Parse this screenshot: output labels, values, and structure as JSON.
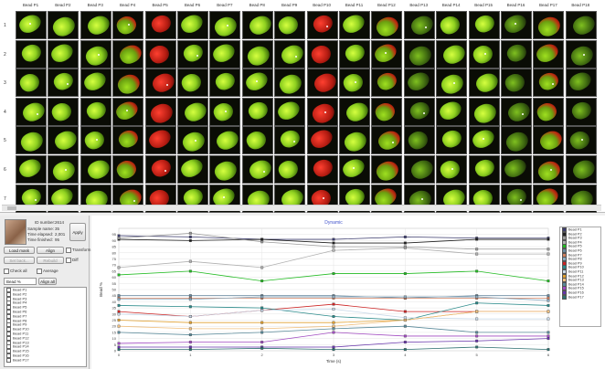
{
  "grid": {
    "columns": [
      "Bead P1",
      "Bead P2",
      "Bead P3",
      "Bead P4",
      "Bead P5",
      "Bead P6",
      "Bead P7",
      "Bead P8",
      "Bead P9",
      "Bead P10",
      "Bead P11",
      "Bead P12",
      "Bead P13",
      "Bead P14",
      "Bead P15",
      "Bead P16",
      "Bead P17",
      "Bead P18"
    ],
    "rows": [
      "1",
      "2",
      "3",
      "4",
      "5",
      "6",
      "7"
    ]
  },
  "info": {
    "labels": [
      "ID number:",
      "Sample name:",
      "Time elapsed:",
      "Time finished:"
    ],
    "values": [
      "2614",
      "35",
      "2,001",
      "95"
    ]
  },
  "buttons": {
    "apply": "Apply",
    "load_mask": "Load mask",
    "align": "Align",
    "set_bg": "Set back...",
    "rebuild": "Rebuild"
  },
  "checkboxes": {
    "transform": "Transform",
    "diff": "Diff",
    "check_all": "Check all",
    "average": "Average",
    "align_all": "Align all"
  },
  "select": {
    "value": "Bead %"
  },
  "bead_list": [
    "Bead P1",
    "Bead P2",
    "Bead P3",
    "Bead P4",
    "Bead P5",
    "Bead P6",
    "Bead P7",
    "Bead P8",
    "Bead P9",
    "Bead P10",
    "Bead P11",
    "Bead P12",
    "Bead P13",
    "Bead P14",
    "Bead P15",
    "Bead P16",
    "Bead P17"
  ],
  "chart_data": {
    "type": "line",
    "title": "Dynamic",
    "xlabel": "Time (s)",
    "ylabel": "Bead %",
    "x": [
      0,
      1,
      2,
      3,
      4,
      5,
      6
    ],
    "x_tick_labels": [
      "0",
      "1",
      "2",
      "3",
      "4",
      "5",
      "6"
    ],
    "ylim": [
      0,
      100
    ],
    "y_ticks": [
      0,
      5,
      10,
      15,
      20,
      25,
      30,
      35,
      40,
      45,
      50,
      55,
      60,
      65,
      70,
      75,
      80,
      85,
      90,
      95
    ],
    "grid": true,
    "legend_placement": "right",
    "series": [
      {
        "name": "Bead P1",
        "color": "#3c3c6e",
        "values": [
          94,
          93,
          91,
          91,
          93,
          92,
          92
        ]
      },
      {
        "name": "Bead P2",
        "color": "#202020",
        "values": [
          91,
          90,
          91,
          88,
          88,
          91,
          91
        ]
      },
      {
        "name": "Bead P3",
        "color": "#999999",
        "values": [
          92,
          96,
          89,
          85,
          85,
          83,
          83
        ]
      },
      {
        "name": "Bead P4",
        "color": "#b0b0b0",
        "values": [
          68,
          73,
          68,
          82,
          84,
          79,
          79
        ]
      },
      {
        "name": "Bead P5",
        "color": "#22bb22",
        "values": [
          62,
          65,
          57,
          63,
          63,
          65,
          57
        ]
      },
      {
        "name": "Bead P6",
        "color": "#6a8aa0",
        "values": [
          45,
          45,
          45,
          45,
          43,
          45,
          45
        ]
      },
      {
        "name": "Bead P7",
        "color": "#d08060",
        "values": [
          43,
          43,
          43,
          43,
          43,
          43,
          43
        ]
      },
      {
        "name": "Bead P8",
        "color": "#8aaac0",
        "values": [
          42,
          42,
          44,
          44,
          44,
          44,
          41
        ]
      },
      {
        "name": "Bead P9",
        "color": "#cc2222",
        "values": [
          32,
          28,
          33,
          38,
          32,
          32,
          32
        ]
      },
      {
        "name": "Bead P10",
        "color": "#2a8a8a",
        "values": [
          37,
          36,
          35,
          28,
          25,
          39,
          37
        ]
      },
      {
        "name": "Bead P11",
        "color": "#c8d8e8",
        "values": [
          30,
          28,
          33,
          34,
          27,
          26,
          26
        ]
      },
      {
        "name": "Bead P12",
        "color": "#e0a030",
        "values": [
          25,
          23,
          23,
          23,
          25,
          32,
          32
        ]
      },
      {
        "name": "Bead P13",
        "color": "#f0c080",
        "values": [
          20,
          18,
          18,
          20,
          25,
          32,
          32
        ]
      },
      {
        "name": "Bead P14",
        "color": "#5a8a9a",
        "values": [
          15,
          13,
          15,
          18,
          20,
          15,
          15
        ]
      },
      {
        "name": "Bead P15",
        "color": "#a04ac0",
        "values": [
          6,
          7,
          7,
          15,
          12,
          12,
          12
        ]
      },
      {
        "name": "Bead P16",
        "color": "#6633aa",
        "values": [
          3,
          3,
          3,
          3,
          7,
          8,
          10
        ]
      },
      {
        "name": "Bead P17",
        "color": "#2e7070",
        "values": [
          1,
          1,
          2,
          1,
          1,
          3,
          1
        ]
      }
    ]
  }
}
